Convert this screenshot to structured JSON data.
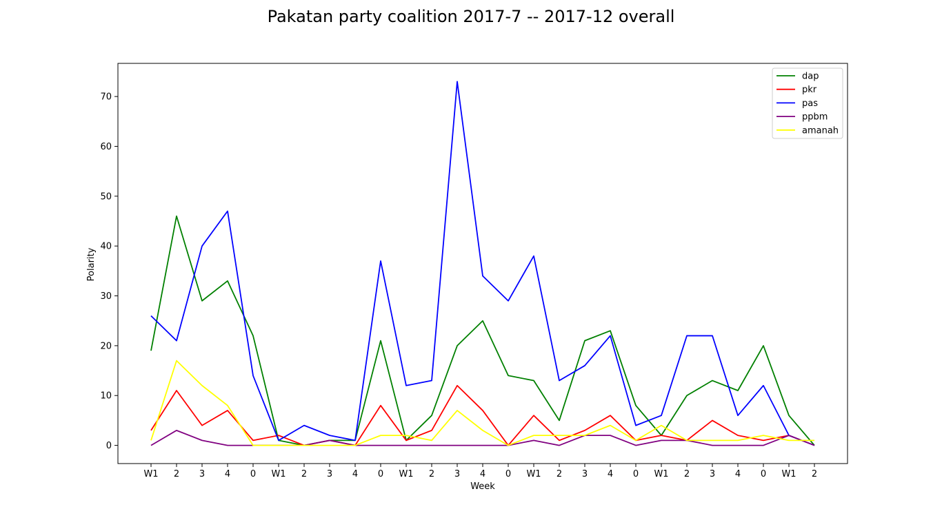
{
  "chart_data": {
    "type": "line",
    "title": "Pakatan party coalition 2017-7 -- 2017-12 overall",
    "xlabel": "Week",
    "ylabel": "Polarity",
    "categories": [
      "W1",
      "2",
      "3",
      "4",
      "0",
      "W1",
      "2",
      "3",
      "4",
      "0",
      "W1",
      "2",
      "3",
      "4",
      "0",
      "W1",
      "2",
      "3",
      "4",
      "0",
      "W1",
      "2",
      "3",
      "4",
      "0",
      "W1",
      "2"
    ],
    "ylim": [
      -3.65,
      76.65
    ],
    "yticks": [
      0,
      10,
      20,
      30,
      40,
      50,
      60,
      70
    ],
    "grid": false,
    "legend_position": "top-right",
    "series": [
      {
        "name": "dap",
        "color": "#008000",
        "values": [
          19,
          46,
          29,
          33,
          22,
          1,
          0,
          1,
          1,
          21,
          1,
          6,
          20,
          25,
          14,
          13,
          5,
          21,
          23,
          8,
          2,
          10,
          13,
          11,
          20,
          6,
          0
        ]
      },
      {
        "name": "pkr",
        "color": "#ff0000",
        "values": [
          3,
          11,
          4,
          7,
          1,
          2,
          0,
          1,
          0,
          8,
          1,
          3,
          12,
          7,
          0,
          6,
          1,
          3,
          6,
          1,
          2,
          1,
          5,
          2,
          1,
          2,
          0
        ]
      },
      {
        "name": "pas",
        "color": "#0000ff",
        "values": [
          26,
          21,
          40,
          47,
          14,
          1,
          4,
          2,
          1,
          37,
          12,
          13,
          73,
          34,
          29,
          38,
          13,
          16,
          22,
          4,
          6,
          22,
          22,
          6,
          12,
          2,
          0
        ]
      },
      {
        "name": "ppbm",
        "color": "#800080",
        "values": [
          0,
          3,
          1,
          0,
          0,
          0,
          0,
          1,
          0,
          0,
          0,
          0,
          0,
          0,
          0,
          1,
          0,
          2,
          2,
          0,
          1,
          1,
          0,
          0,
          0,
          2,
          0
        ]
      },
      {
        "name": "amanah",
        "color": "#ffff00",
        "values": [
          1,
          17,
          12,
          8,
          0,
          0,
          0,
          0,
          0,
          2,
          2,
          1,
          7,
          3,
          0,
          2,
          2,
          2,
          4,
          1,
          4,
          1,
          1,
          1,
          2,
          1,
          1
        ]
      }
    ]
  }
}
